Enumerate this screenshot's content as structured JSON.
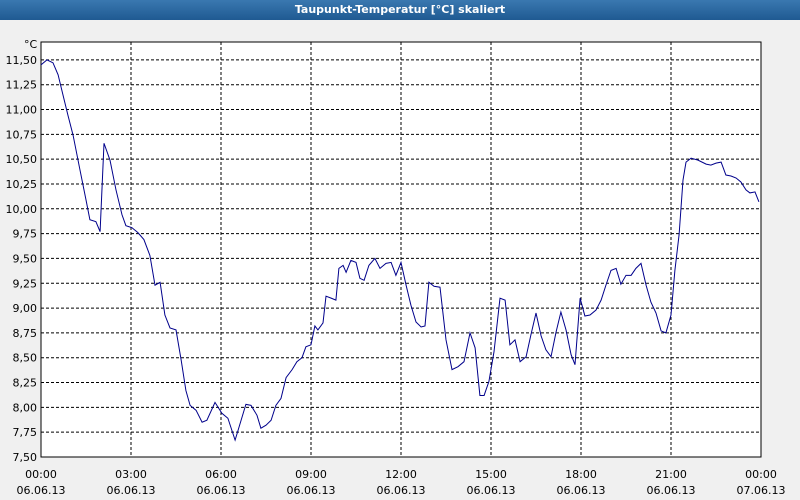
{
  "chart_data": {
    "type": "line",
    "title": "Taupunkt-Temperatur [°C] skaliert",
    "y_label": "°C",
    "x": [
      0,
      0.2,
      0.4,
      0.57,
      0.73,
      0.9,
      1.07,
      1.3,
      1.5,
      1.63,
      1.83,
      1.97,
      2.1,
      2.3,
      2.5,
      2.7,
      2.83,
      3.03,
      3.23,
      3.43,
      3.63,
      3.8,
      3.97,
      4.13,
      4.3,
      4.5,
      4.67,
      4.83,
      4.97,
      5.17,
      5.37,
      5.53,
      5.8,
      6.03,
      6.23,
      6.47,
      6.67,
      6.83,
      7.0,
      7.2,
      7.33,
      7.5,
      7.67,
      7.83,
      8.0,
      8.17,
      8.37,
      8.53,
      8.7,
      8.83,
      9.0,
      9.13,
      9.23,
      9.4,
      9.5,
      9.67,
      9.83,
      9.93,
      10.07,
      10.17,
      10.33,
      10.5,
      10.63,
      10.77,
      10.93,
      11.13,
      11.3,
      11.5,
      11.67,
      11.83,
      12.0,
      12.17,
      12.33,
      12.5,
      12.67,
      12.8,
      12.93,
      13.1,
      13.3,
      13.5,
      13.7,
      13.9,
      14.1,
      14.3,
      14.47,
      14.63,
      14.77,
      14.93,
      15.1,
      15.3,
      15.47,
      15.63,
      15.8,
      15.97,
      16.17,
      16.33,
      16.5,
      16.67,
      16.83,
      17.0,
      17.17,
      17.33,
      17.5,
      17.67,
      17.8,
      17.97,
      18.13,
      18.3,
      18.5,
      18.67,
      18.83,
      19.0,
      19.17,
      19.33,
      19.5,
      19.67,
      19.83,
      20.0,
      20.17,
      20.33,
      20.5,
      20.67,
      20.83,
      21.0,
      21.13,
      21.27,
      21.4,
      21.5,
      21.67,
      21.9,
      22.17,
      22.33,
      22.5,
      22.67,
      22.83,
      23.0,
      23.17,
      23.33,
      23.5,
      23.63,
      23.8,
      23.93
    ],
    "series": [
      {
        "name": "Taupunkt",
        "color": "#00008b",
        "values": [
          11.45,
          11.5,
          11.47,
          11.35,
          11.15,
          10.94,
          10.74,
          10.39,
          10.09,
          9.89,
          9.87,
          9.77,
          10.66,
          10.49,
          10.19,
          9.94,
          9.83,
          9.81,
          9.76,
          9.69,
          9.53,
          9.23,
          9.26,
          8.93,
          8.8,
          8.78,
          8.48,
          8.17,
          8.02,
          7.97,
          7.85,
          7.87,
          8.05,
          7.94,
          7.89,
          7.67,
          7.87,
          8.03,
          8.02,
          7.92,
          7.79,
          7.82,
          7.87,
          8.02,
          8.09,
          8.3,
          8.38,
          8.46,
          8.5,
          8.61,
          8.63,
          8.82,
          8.78,
          8.85,
          9.12,
          9.1,
          9.08,
          9.4,
          9.43,
          9.36,
          9.48,
          9.46,
          9.3,
          9.28,
          9.43,
          9.5,
          9.4,
          9.45,
          9.46,
          9.33,
          9.46,
          9.23,
          9.03,
          8.86,
          8.81,
          8.82,
          9.26,
          9.22,
          9.21,
          8.68,
          8.38,
          8.41,
          8.46,
          8.75,
          8.6,
          8.12,
          8.12,
          8.26,
          8.56,
          9.1,
          9.08,
          8.63,
          8.68,
          8.46,
          8.51,
          8.73,
          8.95,
          8.72,
          8.58,
          8.51,
          8.76,
          8.96,
          8.78,
          8.53,
          8.43,
          9.1,
          8.92,
          8.93,
          8.98,
          9.08,
          9.23,
          9.38,
          9.4,
          9.24,
          9.33,
          9.33,
          9.4,
          9.45,
          9.23,
          9.06,
          8.95,
          8.77,
          8.75,
          8.93,
          9.38,
          9.74,
          10.29,
          10.47,
          10.51,
          10.49,
          10.45,
          10.44,
          10.46,
          10.47,
          10.34,
          10.33,
          10.31,
          10.27,
          10.19,
          10.16,
          10.17,
          10.07
        ]
      }
    ],
    "xlim": [
      0,
      24
    ],
    "ylim": [
      7.5,
      11.68
    ],
    "xticks": [
      {
        "value": 0,
        "label": "00:00"
      },
      {
        "value": 3,
        "label": "03:00"
      },
      {
        "value": 6,
        "label": "06:00"
      },
      {
        "value": 9,
        "label": "09:00"
      },
      {
        "value": 12,
        "label": "12:00"
      },
      {
        "value": 15,
        "label": "15:00"
      },
      {
        "value": 18,
        "label": "18:00"
      },
      {
        "value": 21,
        "label": "21:00"
      },
      {
        "value": 24,
        "label": "00:00"
      }
    ],
    "xtick_dates": [
      "06.06.13",
      "06.06.13",
      "06.06.13",
      "06.06.13",
      "06.06.13",
      "06.06.13",
      "06.06.13",
      "06.06.13",
      "07.06.13"
    ],
    "yticks": [
      {
        "value": 7.5,
        "label": "7,50"
      },
      {
        "value": 7.75,
        "label": "7,75"
      },
      {
        "value": 8,
        "label": "8,00"
      },
      {
        "value": 8.25,
        "label": "8,25"
      },
      {
        "value": 8.5,
        "label": "8,50"
      },
      {
        "value": 8.75,
        "label": "8,75"
      },
      {
        "value": 9,
        "label": "9,00"
      },
      {
        "value": 9.25,
        "label": "9,25"
      },
      {
        "value": 9.5,
        "label": "9,50"
      },
      {
        "value": 9.75,
        "label": "9,75"
      },
      {
        "value": 10,
        "label": "10,00"
      },
      {
        "value": 10.25,
        "label": "10,25"
      },
      {
        "value": 10.5,
        "label": "10,50"
      },
      {
        "value": 10.75,
        "label": "10,75"
      },
      {
        "value": 11,
        "label": "11,00"
      },
      {
        "value": 11.25,
        "label": "11,25"
      },
      {
        "value": 11.5,
        "label": "11,50"
      }
    ],
    "grid": true
  }
}
